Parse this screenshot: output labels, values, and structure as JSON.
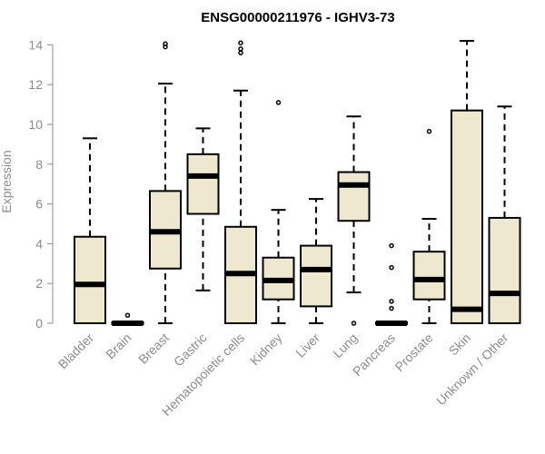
{
  "chart_data": {
    "type": "boxplot",
    "title": "ENSG00000211976 - IGHV3-73",
    "xlabel": "",
    "ylabel": "Expression",
    "ylim": [
      0,
      14.2
    ],
    "yticks": [
      "0",
      "2",
      "4",
      "6",
      "8",
      "10",
      "12",
      "14"
    ],
    "box_color": "#efe8d1",
    "categories": [
      "Bladder",
      "Brain",
      "Breast",
      "Gastric",
      "Hematopoietic cells",
      "Kidney",
      "Liver",
      "Lung",
      "Pancreas",
      "Prostate",
      "Skin",
      "Unknown / Other"
    ],
    "boxes": [
      {
        "min": 0,
        "q1": 0,
        "median": 1.95,
        "q3": 4.35,
        "max": 9.3,
        "outliers": []
      },
      {
        "min": 0,
        "q1": 0,
        "median": 0,
        "q3": 0.05,
        "max": 0.05,
        "outliers": [
          0.4
        ]
      },
      {
        "min": 0,
        "q1": 2.75,
        "median": 4.6,
        "q3": 6.65,
        "max": 12.05,
        "outliers": [
          13.9,
          14.05
        ]
      },
      {
        "min": 1.65,
        "q1": 5.5,
        "median": 7.4,
        "q3": 8.5,
        "max": 9.8,
        "outliers": []
      },
      {
        "min": 0,
        "q1": 0,
        "median": 2.5,
        "q3": 4.85,
        "max": 11.7,
        "outliers": [
          13.6,
          13.8,
          14.1
        ]
      },
      {
        "min": 0,
        "q1": 1.2,
        "median": 2.15,
        "q3": 3.3,
        "max": 5.7,
        "outliers": [
          11.1
        ]
      },
      {
        "min": 0,
        "q1": 0.85,
        "median": 2.7,
        "q3": 3.9,
        "max": 6.25,
        "outliers": []
      },
      {
        "min": 1.55,
        "q1": 5.15,
        "median": 6.95,
        "q3": 7.6,
        "max": 10.4,
        "outliers": [
          0
        ]
      },
      {
        "min": 0,
        "q1": 0,
        "median": 0,
        "q3": 0.05,
        "max": 0.05,
        "outliers": [
          0.75,
          1.1,
          2.8,
          3.9
        ]
      },
      {
        "min": 0,
        "q1": 1.2,
        "median": 2.2,
        "q3": 3.6,
        "max": 5.25,
        "outliers": [
          9.65
        ]
      },
      {
        "min": 0,
        "q1": 0,
        "median": 0.7,
        "q3": 10.7,
        "max": 14.2,
        "outliers": []
      },
      {
        "min": 0,
        "q1": 0,
        "median": 1.5,
        "q3": 5.3,
        "max": 10.9,
        "outliers": []
      }
    ]
  }
}
